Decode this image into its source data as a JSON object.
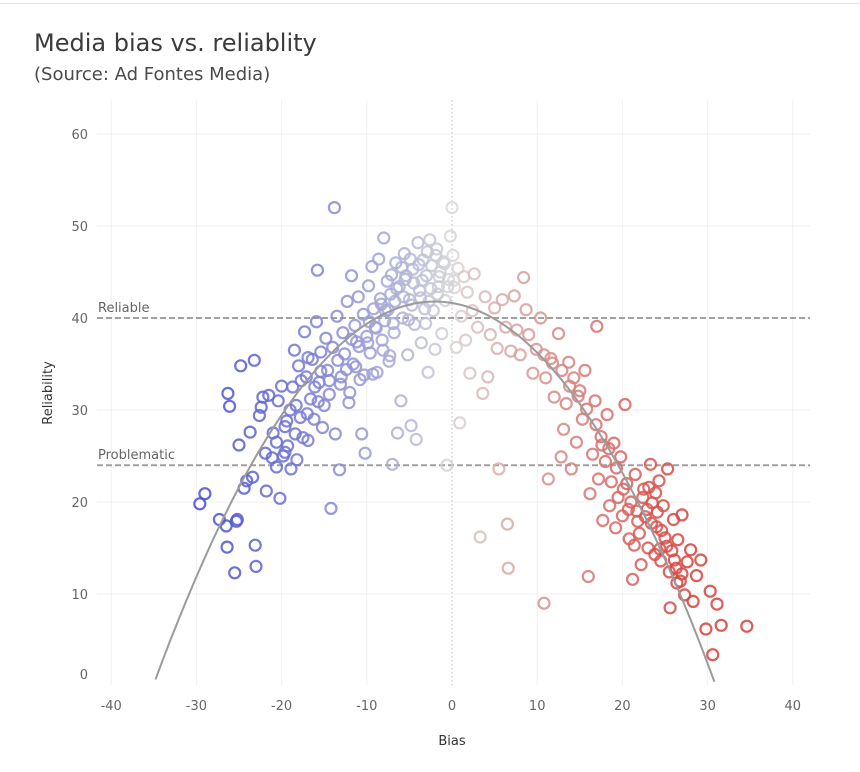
{
  "chart_data": {
    "type": "scatter",
    "title": "Media bias vs. reliablity",
    "subtitle": "(Source: Ad Fontes Media)",
    "xlabel": "Bias",
    "ylabel": "Reliability",
    "xlim": [
      -42,
      42
    ],
    "ylim": [
      0,
      63
    ],
    "xticks": [
      "-40",
      "-30",
      "-20",
      "-10",
      "0",
      "10",
      "20",
      "30",
      "40"
    ],
    "yticks": [
      "0",
      "10",
      "20",
      "30",
      "40",
      "50",
      "60"
    ],
    "grid": true,
    "reference_lines": [
      {
        "label": "Reliable",
        "y": 40
      },
      {
        "label": "Problematic",
        "y": 24
      }
    ],
    "trend_line": {
      "type": "quadratic",
      "coefficients": {
        "a": -0.0383,
        "b": -0.157,
        "c": 41.63
      }
    },
    "colors": {
      "left": "#4a4fcf",
      "center": "#d9d9d9",
      "right": "#d6403a",
      "trend": "#9b9b9b",
      "reference": "#a0a0a0"
    },
    "points": [
      [
        -29.6,
        19.8
      ],
      [
        -29.0,
        20.9
      ],
      [
        -27.3,
        18.1
      ],
      [
        -26.5,
        17.4
      ],
      [
        -26.4,
        15.1
      ],
      [
        -26.3,
        31.8
      ],
      [
        -26.1,
        30.4
      ],
      [
        -25.5,
        12.3
      ],
      [
        -25.3,
        17.9
      ],
      [
        -25.2,
        18.1
      ],
      [
        -25.0,
        26.2
      ],
      [
        -24.8,
        34.8
      ],
      [
        -24.4,
        21.5
      ],
      [
        -24.1,
        22.3
      ],
      [
        -23.7,
        27.6
      ],
      [
        -23.4,
        22.7
      ],
      [
        -23.2,
        35.4
      ],
      [
        -23.1,
        15.3
      ],
      [
        -23.0,
        13.0
      ],
      [
        -22.6,
        29.4
      ],
      [
        -22.4,
        30.3
      ],
      [
        -22.2,
        31.4
      ],
      [
        -21.9,
        25.3
      ],
      [
        -21.8,
        21.2
      ],
      [
        -21.5,
        31.6
      ],
      [
        -21.1,
        24.8
      ],
      [
        -21.0,
        27.5
      ],
      [
        -20.6,
        23.8
      ],
      [
        -20.4,
        31.0
      ],
      [
        -20.2,
        20.4
      ],
      [
        -20.0,
        32.6
      ],
      [
        -19.8,
        25.0
      ],
      [
        -19.6,
        28.2
      ],
      [
        -19.3,
        26.1
      ],
      [
        -19.0,
        30.0
      ],
      [
        -18.9,
        23.6
      ],
      [
        -18.7,
        32.5
      ],
      [
        -18.5,
        36.5
      ],
      [
        -18.2,
        24.6
      ],
      [
        -18.0,
        34.8
      ],
      [
        -17.8,
        29.2
      ],
      [
        -17.5,
        27.0
      ],
      [
        -17.3,
        38.5
      ],
      [
        -17.1,
        33.6
      ],
      [
        -16.9,
        26.7
      ],
      [
        -16.6,
        31.2
      ],
      [
        -16.4,
        35.5
      ],
      [
        -16.2,
        29.0
      ],
      [
        -15.9,
        39.6
      ],
      [
        -15.8,
        45.2
      ],
      [
        -15.6,
        33.0
      ],
      [
        -15.4,
        36.3
      ],
      [
        -15.2,
        28.1
      ],
      [
        -15.0,
        30.5
      ],
      [
        -14.8,
        37.8
      ],
      [
        -14.6,
        34.3
      ],
      [
        -14.4,
        31.7
      ],
      [
        -14.2,
        19.3
      ],
      [
        -14.0,
        36.8
      ],
      [
        -13.8,
        52.0
      ],
      [
        -13.7,
        27.4
      ],
      [
        -13.5,
        40.2
      ],
      [
        -13.2,
        23.5
      ],
      [
        -13.0,
        33.6
      ],
      [
        -12.8,
        38.4
      ],
      [
        -12.6,
        36.1
      ],
      [
        -12.3,
        41.8
      ],
      [
        -12.1,
        30.8
      ],
      [
        -11.8,
        44.6
      ],
      [
        -11.6,
        35.0
      ],
      [
        -11.4,
        39.2
      ],
      [
        -11.2,
        37.4
      ],
      [
        -11.0,
        42.3
      ],
      [
        -10.8,
        33.3
      ],
      [
        -10.6,
        27.4
      ],
      [
        -10.4,
        40.4
      ],
      [
        -10.2,
        25.3
      ],
      [
        -10.0,
        38.0
      ],
      [
        -9.8,
        43.5
      ],
      [
        -9.6,
        36.2
      ],
      [
        -9.4,
        45.6
      ],
      [
        -9.2,
        41.0
      ],
      [
        -9.0,
        39.0
      ],
      [
        -8.8,
        34.1
      ],
      [
        -8.6,
        46.4
      ],
      [
        -8.4,
        42.1
      ],
      [
        -8.2,
        37.6
      ],
      [
        -8.0,
        48.7
      ],
      [
        -7.8,
        40.8
      ],
      [
        -7.6,
        44.0
      ],
      [
        -7.4,
        35.3
      ],
      [
        -7.2,
        42.6
      ],
      [
        -7.0,
        24.1
      ],
      [
        -6.8,
        38.4
      ],
      [
        -6.6,
        46.0
      ],
      [
        -6.4,
        27.5
      ],
      [
        -6.2,
        43.4
      ],
      [
        -6.0,
        31.0
      ],
      [
        -5.8,
        40.0
      ],
      [
        -5.6,
        47.0
      ],
      [
        -5.4,
        44.6
      ],
      [
        -5.2,
        36.0
      ],
      [
        -5.0,
        42.0
      ],
      [
        -4.8,
        28.3
      ],
      [
        -4.6,
        45.3
      ],
      [
        -4.4,
        39.3
      ],
      [
        -4.2,
        26.8
      ],
      [
        -4.0,
        48.2
      ],
      [
        -3.8,
        43.0
      ],
      [
        -3.6,
        37.3
      ],
      [
        -3.4,
        46.3
      ],
      [
        -3.2,
        41.0
      ],
      [
        -3.0,
        44.6
      ],
      [
        -2.8,
        34.1
      ],
      [
        -2.6,
        48.5
      ],
      [
        -2.4,
        45.7
      ],
      [
        -2.2,
        40.8
      ],
      [
        -2.0,
        36.6
      ],
      [
        -1.8,
        47.5
      ],
      [
        -1.6,
        43.4
      ],
      [
        -1.4,
        45.0
      ],
      [
        -1.2,
        38.3
      ],
      [
        -1.0,
        46.1
      ],
      [
        -0.8,
        41.9
      ],
      [
        -0.6,
        24.0
      ],
      [
        -0.4,
        44.2
      ],
      [
        -0.2,
        48.9
      ],
      [
        0.0,
        52.0
      ],
      [
        0.1,
        46.8
      ],
      [
        0.3,
        43.3
      ],
      [
        0.5,
        36.8
      ],
      [
        0.7,
        45.4
      ],
      [
        0.9,
        28.6
      ],
      [
        1.1,
        40.2
      ],
      [
        1.4,
        44.5
      ],
      [
        1.6,
        37.6
      ],
      [
        1.8,
        42.8
      ],
      [
        2.1,
        34.0
      ],
      [
        2.4,
        40.8
      ],
      [
        2.6,
        44.8
      ],
      [
        3.0,
        39.0
      ],
      [
        3.3,
        16.2
      ],
      [
        3.6,
        31.8
      ],
      [
        3.9,
        42.3
      ],
      [
        4.2,
        33.6
      ],
      [
        4.5,
        38.2
      ],
      [
        5.0,
        41.1
      ],
      [
        5.3,
        36.7
      ],
      [
        5.5,
        23.6
      ],
      [
        5.9,
        42.0
      ],
      [
        6.3,
        39.0
      ],
      [
        6.5,
        17.6
      ],
      [
        6.6,
        12.8
      ],
      [
        6.9,
        36.4
      ],
      [
        7.3,
        42.4
      ],
      [
        7.6,
        38.7
      ],
      [
        8.0,
        36.0
      ],
      [
        8.4,
        44.4
      ],
      [
        8.7,
        40.9
      ],
      [
        9.0,
        38.2
      ],
      [
        9.5,
        34.0
      ],
      [
        9.9,
        36.6
      ],
      [
        10.4,
        40.0
      ],
      [
        10.8,
        9.0
      ],
      [
        11.0,
        33.5
      ],
      [
        11.3,
        22.5
      ],
      [
        11.6,
        35.6
      ],
      [
        12.0,
        31.4
      ],
      [
        12.5,
        38.3
      ],
      [
        12.8,
        24.9
      ],
      [
        13.1,
        27.9
      ],
      [
        13.4,
        30.7
      ],
      [
        13.7,
        35.2
      ],
      [
        14.0,
        23.6
      ],
      [
        14.3,
        33.5
      ],
      [
        14.6,
        26.5
      ],
      [
        15.0,
        32.1
      ],
      [
        15.3,
        29.0
      ],
      [
        15.6,
        34.3
      ],
      [
        16.0,
        11.9
      ],
      [
        16.2,
        20.9
      ],
      [
        16.5,
        25.2
      ],
      [
        16.8,
        31.0
      ],
      [
        17.0,
        39.1
      ],
      [
        17.2,
        22.5
      ],
      [
        17.5,
        27.1
      ],
      [
        17.7,
        18.0
      ],
      [
        18.0,
        24.4
      ],
      [
        18.2,
        29.5
      ],
      [
        18.5,
        19.6
      ],
      [
        18.7,
        22.2
      ],
      [
        19.0,
        26.4
      ],
      [
        19.2,
        17.2
      ],
      [
        19.5,
        20.5
      ],
      [
        19.8,
        24.9
      ],
      [
        20.0,
        18.5
      ],
      [
        20.3,
        30.6
      ],
      [
        20.5,
        22.0
      ],
      [
        20.8,
        16.0
      ],
      [
        21.0,
        20.0
      ],
      [
        21.2,
        11.6
      ],
      [
        21.5,
        23.0
      ],
      [
        21.7,
        19.0
      ],
      [
        22.0,
        16.6
      ],
      [
        22.2,
        13.2
      ],
      [
        22.5,
        21.4
      ],
      [
        22.7,
        18.4
      ],
      [
        23.0,
        15.0
      ],
      [
        23.3,
        24.1
      ],
      [
        23.5,
        19.9
      ],
      [
        23.8,
        14.3
      ],
      [
        24.0,
        17.3
      ],
      [
        24.3,
        22.3
      ],
      [
        24.5,
        13.6
      ],
      [
        24.8,
        19.6
      ],
      [
        25.0,
        16.1
      ],
      [
        25.3,
        23.6
      ],
      [
        25.6,
        8.5
      ],
      [
        25.8,
        14.7
      ],
      [
        26.0,
        18.1
      ],
      [
        26.3,
        12.8
      ],
      [
        26.5,
        15.9
      ],
      [
        26.8,
        11.4
      ],
      [
        27.0,
        18.6
      ],
      [
        27.3,
        9.9
      ],
      [
        27.6,
        13.5
      ],
      [
        28.0,
        14.8
      ],
      [
        28.3,
        9.2
      ],
      [
        28.7,
        12.0
      ],
      [
        29.2,
        13.7
      ],
      [
        29.8,
        6.2
      ],
      [
        30.3,
        10.3
      ],
      [
        30.6,
        3.4
      ],
      [
        31.1,
        8.9
      ],
      [
        31.6,
        6.6
      ],
      [
        34.6,
        6.5
      ],
      [
        -7.1,
        44.7
      ],
      [
        -5.9,
        45.5
      ],
      [
        -4.9,
        46.4
      ],
      [
        -3.9,
        45.8
      ],
      [
        -2.9,
        47.2
      ],
      [
        -1.9,
        46.8
      ],
      [
        -0.9,
        45.9
      ],
      [
        0.2,
        44.1
      ],
      [
        -6.5,
        43.2
      ],
      [
        -5.5,
        44.2
      ],
      [
        -4.5,
        43.8
      ],
      [
        -3.5,
        44.1
      ],
      [
        -2.5,
        43.2
      ],
      [
        -1.5,
        44.5
      ],
      [
        -0.5,
        43.4
      ],
      [
        -8.3,
        41.5
      ],
      [
        -7.5,
        40.9
      ],
      [
        -6.7,
        41.8
      ],
      [
        -5.7,
        42.3
      ],
      [
        -4.7,
        41.4
      ],
      [
        -3.7,
        42.2
      ],
      [
        -2.7,
        41.8
      ],
      [
        -1.7,
        42.6
      ],
      [
        -9.7,
        39.6
      ],
      [
        -8.9,
        38.9
      ],
      [
        -7.9,
        39.7
      ],
      [
        -6.9,
        39.4
      ],
      [
        -5.1,
        39.8
      ],
      [
        -3.1,
        39.4
      ],
      [
        -11.8,
        37.7
      ],
      [
        -10.9,
        36.9
      ],
      [
        -9.9,
        37.3
      ],
      [
        -8.1,
        36.5
      ],
      [
        -7.3,
        35.9
      ],
      [
        -13.4,
        35.4
      ],
      [
        -12.4,
        34.4
      ],
      [
        -11.3,
        34.7
      ],
      [
        -10.3,
        33.8
      ],
      [
        -9.3,
        33.9
      ],
      [
        -15.4,
        34.2
      ],
      [
        -14.4,
        33.2
      ],
      [
        -13.1,
        32.8
      ],
      [
        -12.0,
        31.9
      ],
      [
        -16.9,
        35.7
      ],
      [
        -17.7,
        33.2
      ],
      [
        -16.1,
        32.5
      ],
      [
        -18.3,
        30.5
      ],
      [
        -17.0,
        29.6
      ],
      [
        -15.7,
        30.9
      ],
      [
        -19.4,
        28.8
      ],
      [
        -18.4,
        27.4
      ],
      [
        -20.6,
        26.5
      ],
      [
        -19.6,
        25.4
      ],
      [
        22.4,
        20.5
      ],
      [
        23.1,
        21.6
      ],
      [
        23.9,
        21.0
      ],
      [
        22.9,
        19.2
      ],
      [
        24.1,
        18.9
      ],
      [
        23.4,
        17.7
      ],
      [
        24.6,
        16.9
      ],
      [
        25.2,
        15.2
      ],
      [
        24.4,
        14.9
      ],
      [
        26.1,
        13.7
      ],
      [
        25.5,
        12.4
      ],
      [
        27.0,
        12.2
      ],
      [
        26.4,
        11.2
      ],
      [
        21.8,
        17.9
      ],
      [
        20.7,
        19.2
      ],
      [
        21.4,
        15.3
      ],
      [
        20.1,
        21.4
      ],
      [
        19.3,
        23.7
      ],
      [
        18.4,
        25.8
      ],
      [
        17.6,
        26.2
      ],
      [
        16.9,
        28.4
      ],
      [
        15.8,
        30.1
      ],
      [
        14.8,
        31.5
      ],
      [
        13.8,
        32.6
      ],
      [
        12.9,
        34.3
      ],
      [
        11.8,
        35.1
      ],
      [
        10.8,
        36.0
      ]
    ]
  }
}
